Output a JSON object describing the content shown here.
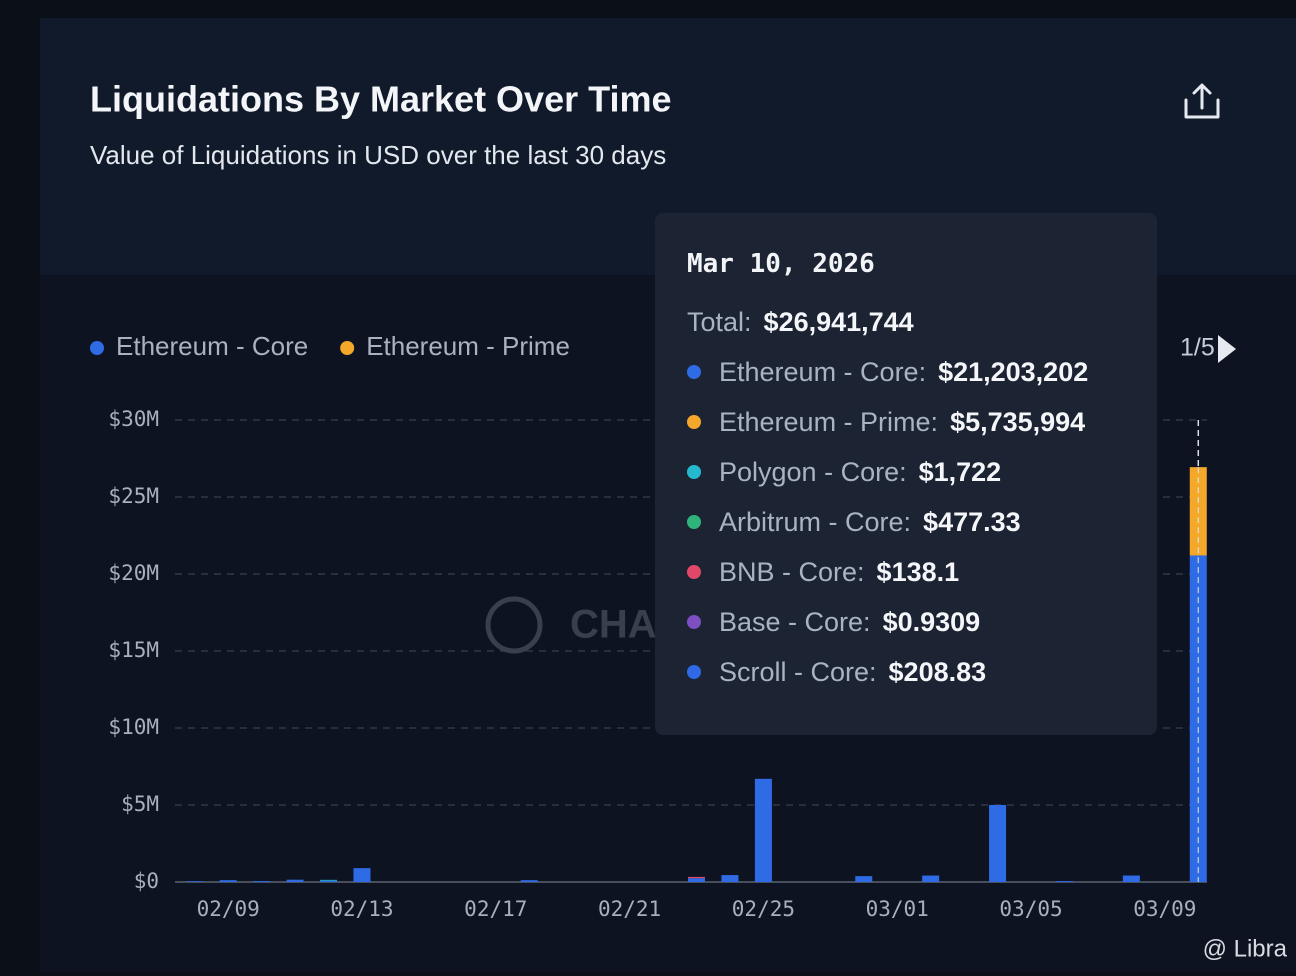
{
  "chart_data": {
    "type": "stacked_bar",
    "title": "Liquidations By Market Over Time",
    "subtitle": "Value of Liquidations in USD over the last 30 days",
    "watermark": "CHAOS LABS",
    "credit": "@ Libra",
    "legend_page": "1/5",
    "legend_count": 2,
    "categories": [
      null,
      "02/09",
      null,
      null,
      null,
      "02/13",
      null,
      null,
      null,
      "02/17",
      null,
      null,
      null,
      "02/21",
      null,
      null,
      null,
      "02/25",
      null,
      null,
      null,
      "03/01",
      null,
      null,
      null,
      "03/05",
      null,
      null,
      null,
      "03/09",
      null
    ],
    "series": [
      {
        "name": "Ethereum - Core",
        "color": "#2f6be4",
        "values": [
          50000,
          120000,
          60000,
          150000,
          80000,
          900000,
          0,
          0,
          0,
          0,
          120000,
          0,
          0,
          0,
          0,
          250000,
          450000,
          6700000,
          0,
          0,
          380000,
          0,
          420000,
          0,
          5000000,
          0,
          60000,
          0,
          420000,
          0,
          21203202
        ]
      },
      {
        "name": "Ethereum - Prime",
        "color": "#f5a72a",
        "values": [
          0,
          0,
          0,
          0,
          0,
          0,
          0,
          0,
          0,
          0,
          0,
          0,
          0,
          0,
          0,
          0,
          0,
          0,
          0,
          0,
          0,
          0,
          0,
          0,
          0,
          0,
          0,
          0,
          0,
          0,
          5735994
        ]
      },
      {
        "name": "Polygon - Core",
        "color": "#25b9cf",
        "values": [
          0,
          0,
          0,
          0,
          60000,
          0,
          0,
          0,
          0,
          0,
          0,
          0,
          0,
          0,
          0,
          0,
          0,
          0,
          0,
          0,
          0,
          0,
          0,
          0,
          0,
          0,
          0,
          0,
          0,
          0,
          1722
        ]
      },
      {
        "name": "Arbitrum - Core",
        "color": "#2fb57b",
        "values": [
          0,
          0,
          0,
          0,
          0,
          0,
          0,
          0,
          0,
          0,
          0,
          0,
          0,
          0,
          0,
          0,
          0,
          0,
          0,
          0,
          0,
          0,
          0,
          0,
          0,
          0,
          0,
          0,
          0,
          0,
          477.33
        ]
      },
      {
        "name": "BNB - Core",
        "color": "#e2476a",
        "values": [
          0,
          0,
          0,
          0,
          0,
          0,
          0,
          0,
          0,
          0,
          0,
          0,
          0,
          0,
          0,
          80000,
          0,
          0,
          0,
          0,
          0,
          0,
          0,
          0,
          0,
          0,
          0,
          0,
          0,
          0,
          138.1
        ]
      },
      {
        "name": "Base - Core",
        "color": "#7d4fc0",
        "values": [
          0,
          0,
          0,
          0,
          0,
          0,
          0,
          0,
          0,
          0,
          0,
          0,
          0,
          0,
          0,
          0,
          0,
          0,
          0,
          0,
          0,
          0,
          0,
          0,
          0,
          0,
          0,
          0,
          0,
          0,
          0.9309
        ]
      },
      {
        "name": "Scroll - Core",
        "color": "#3068e6",
        "values": [
          0,
          0,
          0,
          0,
          0,
          0,
          0,
          0,
          0,
          0,
          0,
          0,
          0,
          0,
          0,
          0,
          0,
          0,
          0,
          0,
          0,
          0,
          0,
          0,
          0,
          0,
          0,
          0,
          0,
          0,
          208.83
        ]
      }
    ],
    "ylim": [
      0,
      30000000
    ],
    "yticks": [
      {
        "value": 0,
        "label": "$0"
      },
      {
        "value": 5000000,
        "label": "$5M"
      },
      {
        "value": 10000000,
        "label": "$10M"
      },
      {
        "value": 15000000,
        "label": "$15M"
      },
      {
        "value": 20000000,
        "label": "$20M"
      },
      {
        "value": 25000000,
        "label": "$25M"
      },
      {
        "value": 30000000,
        "label": "$30M"
      }
    ],
    "grid": true,
    "tooltip": {
      "index": 30,
      "title": "Mar 10, 2026",
      "total_label": "Total:",
      "total": "$26,941,744",
      "rows": [
        {
          "label": "Ethereum - Core:",
          "value": "$21,203,202"
        },
        {
          "label": "Ethereum - Prime:",
          "value": "$5,735,994"
        },
        {
          "label": "Polygon - Core:",
          "value": "$1,722"
        },
        {
          "label": "Arbitrum - Core:",
          "value": "$477.33"
        },
        {
          "label": "BNB - Core:",
          "value": "$138.1"
        },
        {
          "label": "Base - Core:",
          "value": "$0.9309"
        },
        {
          "label": "Scroll - Core:",
          "value": "$208.83"
        }
      ]
    }
  }
}
